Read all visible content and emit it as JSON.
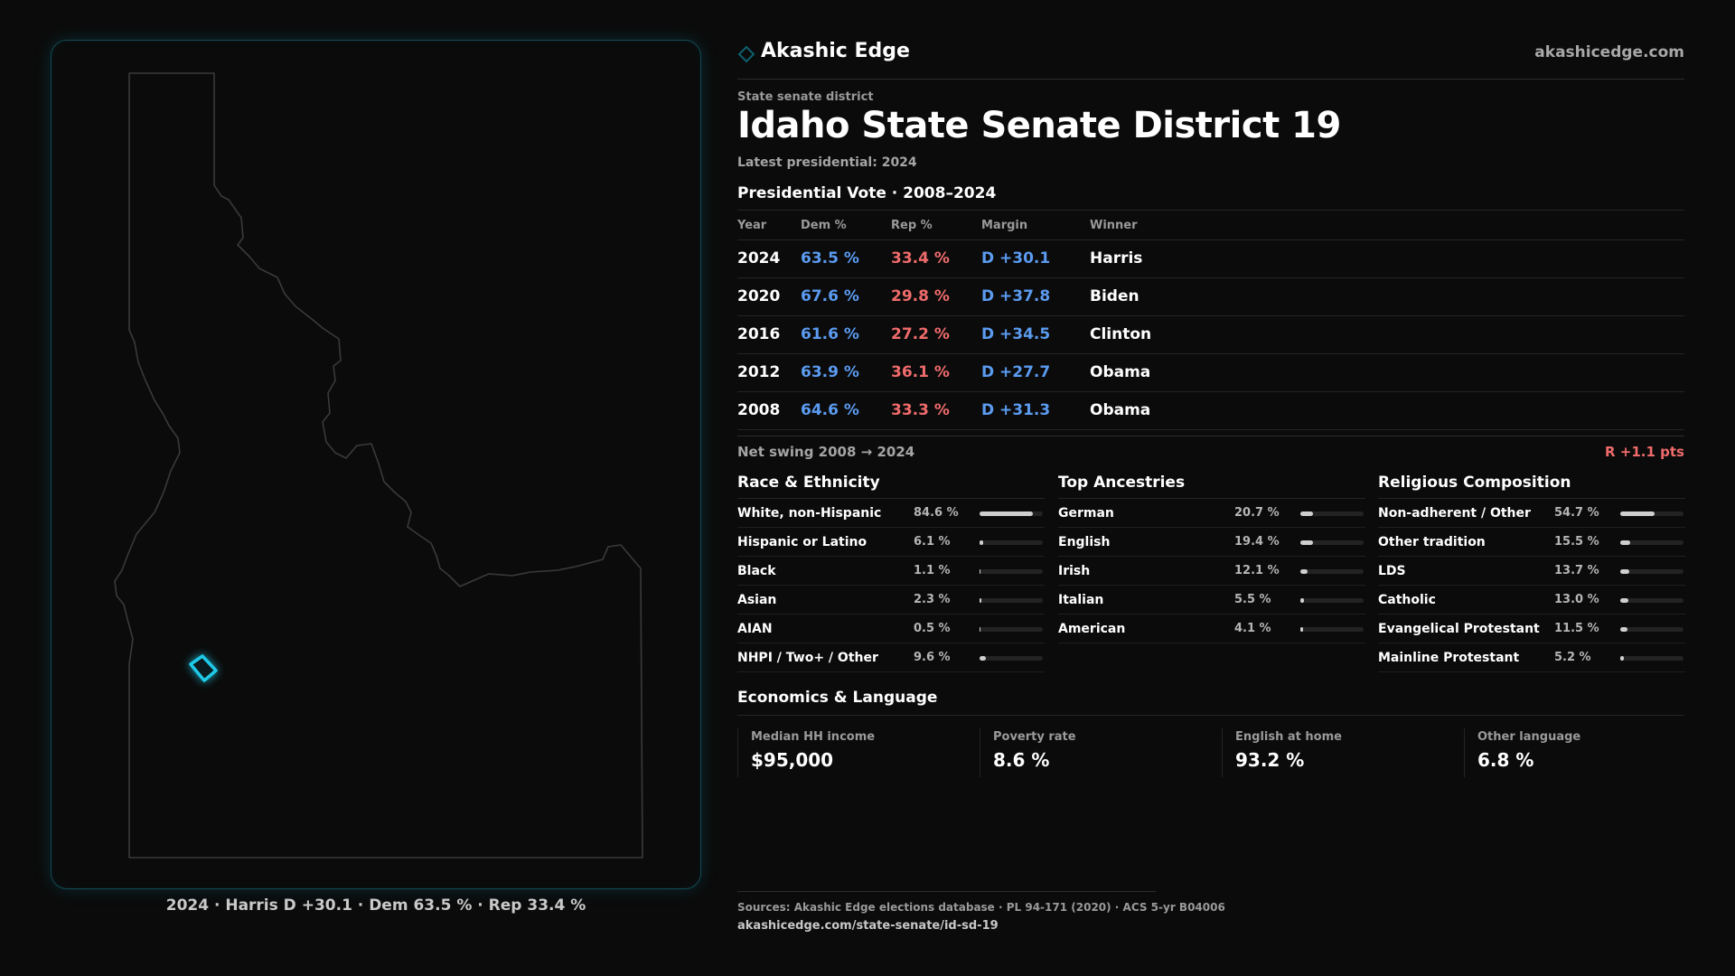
{
  "brand": {
    "name": "Akashic Edge",
    "url": "akashicedge.com",
    "accent": "#0e5f6e"
  },
  "header": {
    "eyebrow": "State senate district",
    "title": "Idaho State Senate District 19",
    "subtitle": "Latest presidential: 2024"
  },
  "map": {
    "caption": "2024 · Harris D +30.1 · Dem 63.5 % · Rep 33.4 %",
    "highlight_color": "#1fc9e8",
    "outline_color": "#3a3a3a"
  },
  "vote": {
    "heading": "Presidential Vote · 2008–2024",
    "columns": [
      "Year",
      "Dem %",
      "Rep %",
      "Margin",
      "Winner"
    ],
    "rows": [
      {
        "year": "2024",
        "dem": "63.5 %",
        "rep": "33.4 %",
        "margin": "D +30.1",
        "winner": "Harris"
      },
      {
        "year": "2020",
        "dem": "67.6 %",
        "rep": "29.8 %",
        "margin": "D +37.8",
        "winner": "Biden"
      },
      {
        "year": "2016",
        "dem": "61.6 %",
        "rep": "27.2 %",
        "margin": "D +34.5",
        "winner": "Clinton"
      },
      {
        "year": "2012",
        "dem": "63.9 %",
        "rep": "36.1 %",
        "margin": "D +27.7",
        "winner": "Obama"
      },
      {
        "year": "2008",
        "dem": "64.6 %",
        "rep": "33.3 %",
        "margin": "D +31.3",
        "winner": "Obama"
      }
    ],
    "dem_color": "#5b9bf0",
    "rep_color": "#f06b6b"
  },
  "swing": {
    "label": "Net swing 2008 → 2024",
    "value": "R +1.1 pts"
  },
  "race": {
    "heading": "Race & Ethnicity",
    "items": [
      {
        "label": "White, non-Hispanic",
        "value": "84.6 %",
        "pct": 84.6
      },
      {
        "label": "Hispanic or Latino",
        "value": "6.1 %",
        "pct": 6.1
      },
      {
        "label": "Black",
        "value": "1.1 %",
        "pct": 1.1
      },
      {
        "label": "Asian",
        "value": "2.3 %",
        "pct": 2.3
      },
      {
        "label": "AIAN",
        "value": "0.5 %",
        "pct": 0.5
      },
      {
        "label": "NHPI / Two+ / Other",
        "value": "9.6 %",
        "pct": 9.6
      }
    ]
  },
  "ancestry": {
    "heading": "Top Ancestries",
    "items": [
      {
        "label": "German",
        "value": "20.7 %",
        "pct": 20.7
      },
      {
        "label": "English",
        "value": "19.4 %",
        "pct": 19.4
      },
      {
        "label": "Irish",
        "value": "12.1 %",
        "pct": 12.1
      },
      {
        "label": "Italian",
        "value": "5.5 %",
        "pct": 5.5
      },
      {
        "label": "American",
        "value": "4.1 %",
        "pct": 4.1
      }
    ]
  },
  "religion": {
    "heading": "Religious Composition",
    "items": [
      {
        "label": "Non-adherent / Other",
        "value": "54.7 %",
        "pct": 54.7
      },
      {
        "label": "Other tradition",
        "value": "15.5 %",
        "pct": 15.5
      },
      {
        "label": "LDS",
        "value": "13.7 %",
        "pct": 13.7
      },
      {
        "label": "Catholic",
        "value": "13.0 %",
        "pct": 13.0
      },
      {
        "label": "Evangelical Protestant",
        "value": "11.5 %",
        "pct": 11.5
      },
      {
        "label": "Mainline Protestant",
        "value": "5.2 %",
        "pct": 5.2
      }
    ]
  },
  "economics": {
    "heading": "Economics & Language",
    "cards": [
      {
        "label": "Median HH income",
        "value": "$95,000"
      },
      {
        "label": "Poverty rate",
        "value": "8.6 %"
      },
      {
        "label": "English at home",
        "value": "93.2 %"
      },
      {
        "label": "Other language",
        "value": "6.8 %"
      }
    ]
  },
  "footer": {
    "sources": "Sources: Akashic Edge elections database · PL 94-171 (2020) · ACS 5-yr B04006",
    "link": "akashicedge.com/state-senate/id-sd-19"
  }
}
